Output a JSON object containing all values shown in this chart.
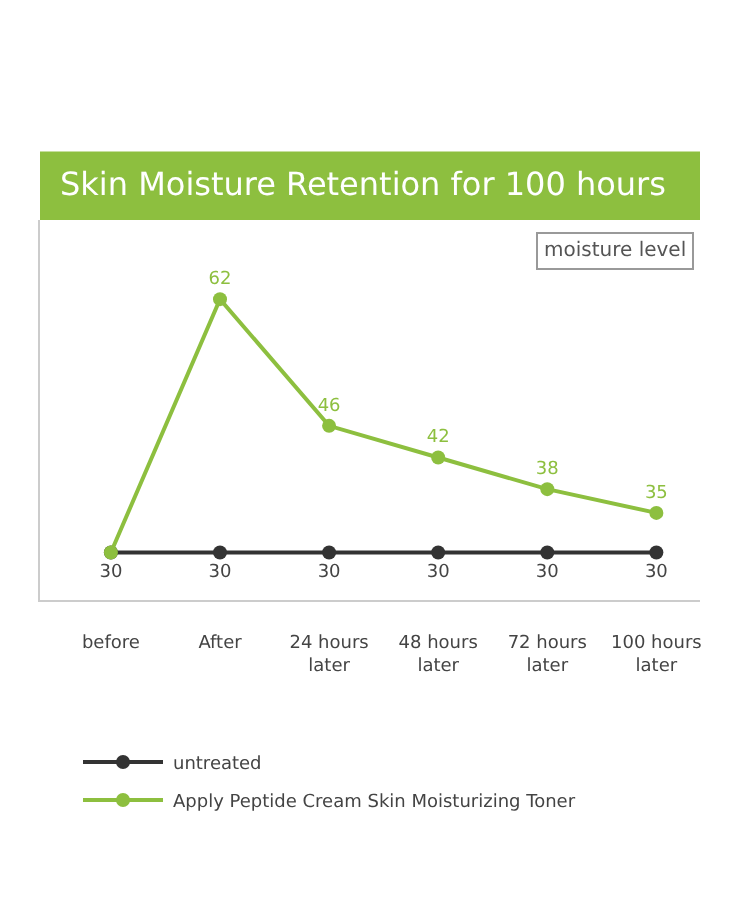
{
  "chart_data": {
    "type": "line",
    "title": "Skin Moisture Retention for 100 hours",
    "categories": [
      "before",
      "After",
      "24 hours\nlater",
      "48 hours\nlater",
      "72 hours\nlater",
      "100 hours\nlater"
    ],
    "series": [
      {
        "name": "untreated",
        "color": "#333333",
        "values": [
          30,
          30,
          30,
          30,
          30,
          30
        ],
        "value_labels": [
          "30",
          "30",
          "30",
          "30",
          "30",
          "30"
        ]
      },
      {
        "name": "Apply Peptide Cream Skin Moisturizing Toner",
        "color": "#8dbf3f",
        "values": [
          30,
          62,
          46,
          42,
          38,
          35
        ],
        "value_labels": [
          null,
          "62",
          "46",
          "42",
          "38",
          "35"
        ]
      }
    ],
    "annotations": [
      "moisture level"
    ],
    "ylim": [
      24,
      72
    ],
    "tick_labels": "x",
    "grid": false,
    "legend": "bottom",
    "marker": "circle",
    "line_style": "solid"
  }
}
